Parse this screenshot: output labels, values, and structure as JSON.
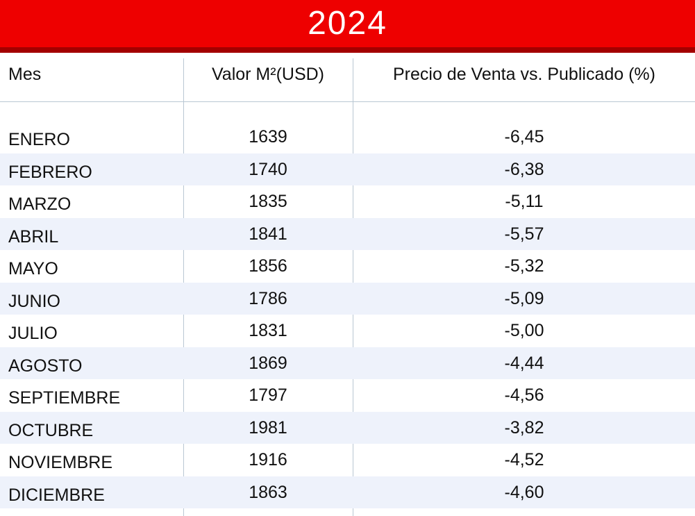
{
  "title": "2024",
  "colors": {
    "title_bg": "#ee0000",
    "title_border": "#a30000",
    "row_alt_bg": "#eef2fb",
    "grid_line": "#b9c7d3"
  },
  "chart_data": {
    "type": "table",
    "title": "2024",
    "columns": [
      "Mes",
      "Valor M²(USD)",
      "Precio de Venta vs. Publicado (%)"
    ],
    "rows": [
      {
        "mes": "ENERO",
        "valor": "1639",
        "precio": "-6,45"
      },
      {
        "mes": "FEBRERO",
        "valor": "1740",
        "precio": "-6,38"
      },
      {
        "mes": "MARZO",
        "valor": "1835",
        "precio": "-5,11"
      },
      {
        "mes": "ABRIL",
        "valor": "1841",
        "precio": "-5,57"
      },
      {
        "mes": "MAYO",
        "valor": "1856",
        "precio": "-5,32"
      },
      {
        "mes": "JUNIO",
        "valor": "1786",
        "precio": "-5,09"
      },
      {
        "mes": "JULIO",
        "valor": "1831",
        "precio": "-5,00"
      },
      {
        "mes": "AGOSTO",
        "valor": "1869",
        "precio": "-4,44"
      },
      {
        "mes": "SEPTIEMBRE",
        "valor": "1797",
        "precio": "-4,56"
      },
      {
        "mes": "OCTUBRE",
        "valor": "1981",
        "precio": "-3,82"
      },
      {
        "mes": "NOVIEMBRE",
        "valor": "1916",
        "precio": "-4,52"
      },
      {
        "mes": "DICIEMBRE",
        "valor": "1863",
        "precio": "-4,60"
      }
    ]
  }
}
